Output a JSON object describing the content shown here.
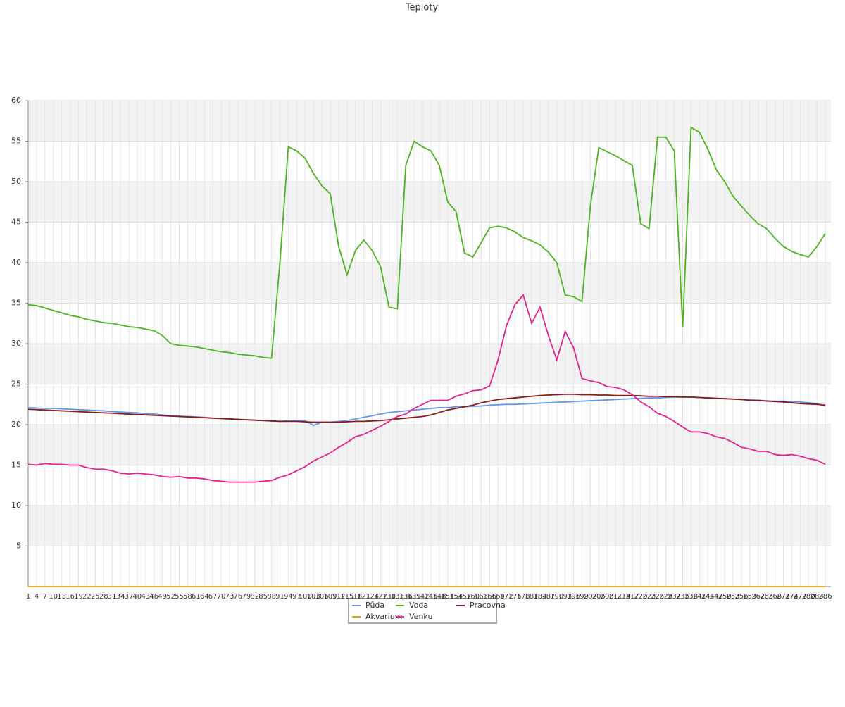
{
  "chart_data": {
    "type": "line",
    "title": "Teploty",
    "x": [
      1,
      4,
      7,
      10,
      13,
      16,
      19,
      22,
      25,
      28,
      31,
      34,
      37,
      40,
      43,
      46,
      49,
      52,
      55,
      58,
      61,
      64,
      67,
      70,
      73,
      76,
      79,
      82,
      85,
      88,
      91,
      94,
      97,
      100,
      103,
      106,
      109,
      112,
      115,
      118,
      121,
      124,
      127,
      130,
      133,
      136,
      139,
      142,
      145,
      148,
      151,
      154,
      157,
      160,
      163,
      166,
      169,
      172,
      175,
      178,
      181,
      184,
      187,
      190,
      193,
      196,
      199,
      202,
      205,
      208,
      211,
      214,
      217,
      220,
      223,
      226,
      229,
      232,
      235,
      238,
      241,
      244,
      247,
      250,
      253,
      256,
      259,
      262,
      265,
      268,
      271,
      274,
      277,
      280,
      283,
      286
    ],
    "xlim": [
      1,
      288
    ],
    "ylim": [
      0,
      60
    ],
    "yticks": [
      5,
      10,
      15,
      20,
      25,
      30,
      35,
      40,
      45,
      50,
      55,
      60
    ],
    "grid": true,
    "legend": "bottom",
    "series": [
      {
        "name": "Půda",
        "color": "#6495ed",
        "values": [
          22.1,
          22.05,
          22.0,
          22.0,
          21.95,
          21.9,
          21.85,
          21.8,
          21.75,
          21.7,
          21.6,
          21.55,
          21.5,
          21.45,
          21.35,
          21.3,
          21.2,
          21.1,
          21.05,
          21.0,
          20.95,
          20.9,
          20.8,
          20.75,
          20.7,
          20.65,
          20.6,
          20.55,
          20.5,
          20.45,
          20.4,
          20.5,
          20.5,
          20.5,
          19.9,
          20.3,
          20.3,
          20.4,
          20.5,
          20.7,
          20.9,
          21.1,
          21.3,
          21.5,
          21.6,
          21.7,
          21.8,
          21.9,
          22.0,
          22.1,
          22.1,
          22.2,
          22.2,
          22.25,
          22.3,
          22.4,
          22.45,
          22.5,
          22.5,
          22.55,
          22.6,
          22.65,
          22.7,
          22.75,
          22.8,
          22.85,
          22.9,
          22.95,
          23.0,
          23.05,
          23.1,
          23.15,
          23.2,
          23.25,
          23.3,
          23.3,
          23.35,
          23.4,
          23.4,
          23.4,
          23.35,
          23.3,
          23.25,
          23.2,
          23.15,
          23.1,
          23.05,
          23.0,
          22.95,
          22.9,
          22.9,
          22.85,
          22.8,
          22.7,
          22.6,
          22.3
        ]
      },
      {
        "name": "Voda",
        "color": "#4db31f",
        "values": [
          34.8,
          34.7,
          34.4,
          34.1,
          33.8,
          33.5,
          33.3,
          33.0,
          32.8,
          32.6,
          32.5,
          32.3,
          32.1,
          32.0,
          31.8,
          31.6,
          31.0,
          30.0,
          29.8,
          29.7,
          29.6,
          29.4,
          29.2,
          29.0,
          28.9,
          28.7,
          28.6,
          28.5,
          28.3,
          28.2,
          40,
          54.3,
          53.8,
          52.9,
          51.0,
          49.5,
          48.5,
          42,
          38.5,
          41.5,
          42.8,
          41.5,
          39.5,
          34.5,
          34.3,
          52,
          55,
          54.3,
          53.8,
          52,
          47.5,
          46.3,
          41.2,
          40.7,
          42.5,
          44.3,
          44.5,
          44.3,
          43.8,
          43.1,
          42.7,
          42.2,
          41.3,
          40.0,
          36,
          35.8,
          35.2,
          47,
          54.2,
          53.7,
          53.2,
          52.6,
          52.0,
          44.8,
          44.2,
          55.5,
          55.5,
          53.8,
          32,
          56.7,
          56.1,
          54.0,
          51.5,
          50.0,
          48.2,
          47.0,
          45.8,
          44.8,
          44.2,
          43.0,
          42.0,
          41.4,
          41.0,
          40.7,
          42.0,
          43.6
        ]
      },
      {
        "name": "Pracovna",
        "color": "#8b1a1a",
        "values": [
          21.9,
          21.85,
          21.8,
          21.75,
          21.7,
          21.65,
          21.6,
          21.55,
          21.5,
          21.45,
          21.4,
          21.35,
          21.3,
          21.25,
          21.2,
          21.15,
          21.1,
          21.05,
          21.0,
          20.95,
          20.9,
          20.85,
          20.8,
          20.75,
          20.7,
          20.65,
          20.6,
          20.55,
          20.5,
          20.45,
          20.4,
          20.4,
          20.4,
          20.35,
          20.3,
          20.3,
          20.3,
          20.3,
          20.35,
          20.4,
          20.4,
          20.45,
          20.5,
          20.6,
          20.7,
          20.8,
          20.9,
          21.0,
          21.2,
          21.5,
          21.8,
          22.0,
          22.2,
          22.4,
          22.7,
          22.9,
          23.1,
          23.2,
          23.3,
          23.4,
          23.5,
          23.6,
          23.65,
          23.7,
          23.75,
          23.75,
          23.7,
          23.7,
          23.65,
          23.65,
          23.6,
          23.6,
          23.6,
          23.55,
          23.5,
          23.5,
          23.45,
          23.45,
          23.4,
          23.4,
          23.35,
          23.3,
          23.25,
          23.2,
          23.15,
          23.1,
          23.0,
          23.0,
          22.9,
          22.85,
          22.8,
          22.7,
          22.6,
          22.55,
          22.5,
          22.4
        ]
      },
      {
        "name": "Akvarium",
        "color": "#e8a317",
        "values": [
          0,
          0,
          0,
          0,
          0,
          0,
          0,
          0,
          0,
          0,
          0,
          0,
          0,
          0,
          0,
          0,
          0,
          0,
          0,
          0,
          0,
          0,
          0,
          0,
          0,
          0,
          0,
          0,
          0,
          0,
          0,
          0,
          0,
          0,
          0,
          0,
          0,
          0,
          0,
          0,
          0,
          0,
          0,
          0,
          0,
          0,
          0,
          0,
          0,
          0,
          0,
          0,
          0,
          0,
          0,
          0,
          0,
          0,
          0,
          0,
          0,
          0,
          0,
          0,
          0,
          0,
          0,
          0,
          0,
          0,
          0,
          0,
          0,
          0,
          0,
          0,
          0,
          0,
          0,
          0,
          0,
          0,
          0,
          0,
          0,
          0,
          0,
          0,
          0,
          0,
          0,
          0,
          0,
          0,
          0,
          0
        ]
      },
      {
        "name": "Venku",
        "color": "#e6208c",
        "values": [
          15.1,
          15.0,
          15.2,
          15.1,
          15.1,
          15.0,
          15.0,
          14.7,
          14.5,
          14.5,
          14.3,
          14.0,
          13.9,
          14.0,
          13.9,
          13.8,
          13.6,
          13.5,
          13.6,
          13.4,
          13.4,
          13.3,
          13.1,
          13.0,
          12.9,
          12.9,
          12.9,
          12.9,
          13.0,
          13.1,
          13.5,
          13.8,
          14.3,
          14.8,
          15.5,
          16.0,
          16.5,
          17.2,
          17.8,
          18.5,
          18.8,
          19.3,
          19.8,
          20.4,
          21.0,
          21.3,
          22.0,
          22.5,
          23.0,
          23.0,
          23.0,
          23.5,
          23.8,
          24.2,
          24.3,
          24.8,
          28,
          32.2,
          34.8,
          36,
          32.5,
          34.5,
          31,
          28,
          31.5,
          29.5,
          25.7,
          25.4,
          25.2,
          24.7,
          24.6,
          24.3,
          23.7,
          22.8,
          22.2,
          21.4,
          21.0,
          20.4,
          19.7,
          19.1,
          19.1,
          18.9,
          18.5,
          18.3,
          17.8,
          17.2,
          17.0,
          16.7,
          16.7,
          16.3,
          16.2,
          16.3,
          16.1,
          15.8,
          15.6,
          15.1
        ]
      }
    ]
  }
}
